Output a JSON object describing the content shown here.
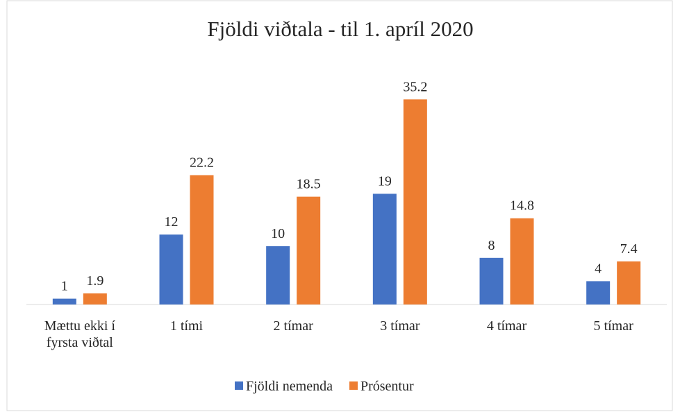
{
  "chart_data": {
    "type": "bar",
    "title": "Fjöldi viðtala - til 1. apríl 2020",
    "categories": [
      "Mættu ekki í fyrsta viðtal",
      "1 tími",
      "2 tímar",
      "3 tímar",
      "4 tímar",
      "5 tímar"
    ],
    "series": [
      {
        "name": "Fjöldi nemenda",
        "color": "#4472c4",
        "values": [
          1,
          12,
          10,
          19,
          8,
          4
        ]
      },
      {
        "name": "Prósentur",
        "color": "#ed7d31",
        "values": [
          1.9,
          22.2,
          18.5,
          35.2,
          14.8,
          7.4
        ]
      }
    ],
    "ylim": [
      0,
      40
    ],
    "legend": "bottom"
  }
}
